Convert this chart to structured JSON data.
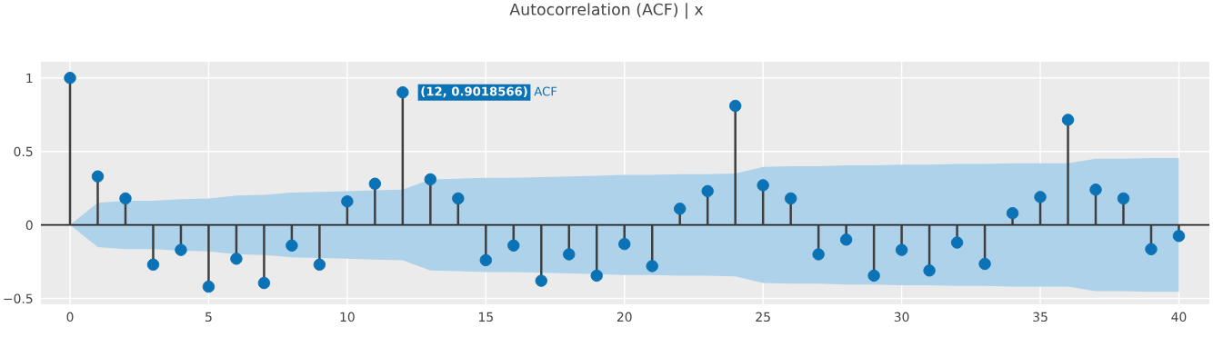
{
  "chart_data": {
    "type": "lollipop",
    "title": "Autocorrelation (ACF) | x",
    "x": [
      0,
      1,
      2,
      3,
      4,
      5,
      6,
      7,
      8,
      9,
      10,
      11,
      12,
      13,
      14,
      15,
      16,
      17,
      18,
      19,
      20,
      21,
      22,
      23,
      24,
      25,
      26,
      27,
      28,
      29,
      30,
      31,
      32,
      33,
      34,
      35,
      36,
      37,
      38,
      39,
      40
    ],
    "series": [
      {
        "name": "ACF",
        "color": "#0b72b5",
        "values": [
          1,
          0.33,
          0.18,
          -0.27,
          -0.17,
          -0.42,
          -0.23,
          -0.395,
          -0.14,
          -0.27,
          0.16,
          0.28,
          0.9018566,
          0.31,
          0.18,
          -0.24,
          -0.14,
          -0.38,
          -0.2,
          -0.345,
          -0.13,
          -0.28,
          0.11,
          0.23,
          0.81,
          0.27,
          0.18,
          -0.2,
          -0.1,
          -0.345,
          -0.17,
          -0.31,
          -0.12,
          -0.265,
          0.08,
          0.19,
          0.715,
          0.24,
          0.18,
          -0.165,
          -0.075
        ],
        "upper": [
          0,
          0.15,
          0.165,
          0.165,
          0.175,
          0.18,
          0.2,
          0.205,
          0.22,
          0.225,
          0.23,
          0.235,
          0.24,
          0.31,
          0.315,
          0.32,
          0.32,
          0.325,
          0.33,
          0.335,
          0.34,
          0.34,
          0.345,
          0.345,
          0.35,
          0.395,
          0.4,
          0.4,
          0.405,
          0.405,
          0.41,
          0.41,
          0.415,
          0.415,
          0.42,
          0.42,
          0.42,
          0.45,
          0.45,
          0.455,
          0.455
        ],
        "lower": [
          0,
          -0.15,
          -0.165,
          -0.165,
          -0.175,
          -0.18,
          -0.2,
          -0.205,
          -0.22,
          -0.225,
          -0.23,
          -0.235,
          -0.24,
          -0.31,
          -0.315,
          -0.32,
          -0.32,
          -0.325,
          -0.33,
          -0.335,
          -0.34,
          -0.34,
          -0.345,
          -0.345,
          -0.35,
          -0.395,
          -0.4,
          -0.4,
          -0.405,
          -0.405,
          -0.41,
          -0.41,
          -0.415,
          -0.415,
          -0.42,
          -0.42,
          -0.42,
          -0.45,
          -0.45,
          -0.455,
          -0.455
        ]
      }
    ],
    "annotations": [
      {
        "text": "(12, 0.9018566)",
        "x": 12,
        "y": 0.9018566
      }
    ],
    "xlim": [
      -1.05,
      41.1
    ],
    "xticks": [
      0,
      5,
      10,
      15,
      20,
      25,
      30,
      35,
      40
    ],
    "ylim": [
      -0.54,
      1.11
    ],
    "yticks": [
      {
        "value": -0.5,
        "label": "−0.5"
      },
      0,
      0.5,
      1
    ],
    "grid": true,
    "marker": "circle"
  }
}
